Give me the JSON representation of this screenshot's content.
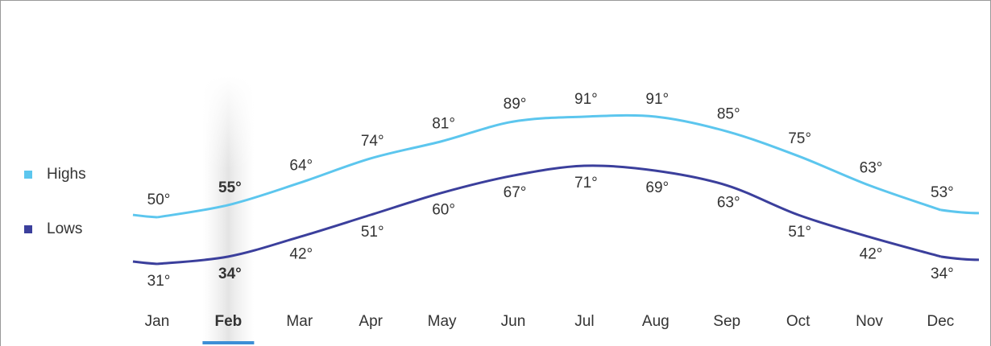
{
  "chart_data": {
    "type": "line",
    "categories": [
      "Jan",
      "Feb",
      "Mar",
      "Apr",
      "May",
      "Jun",
      "Jul",
      "Aug",
      "Sep",
      "Oct",
      "Nov",
      "Dec"
    ],
    "selected_index": 1,
    "series": [
      {
        "name": "Highs",
        "color": "#5cc6ee",
        "values": [
          50,
          55,
          64,
          74,
          81,
          89,
          91,
          91,
          85,
          75,
          63,
          53
        ],
        "value_labels": [
          "50°",
          "55°",
          "64°",
          "74°",
          "81°",
          "89°",
          "91°",
          "91°",
          "85°",
          "75°",
          "63°",
          "53°"
        ]
      },
      {
        "name": "Lows",
        "color": "#3b3f9c",
        "values": [
          31,
          34,
          42,
          51,
          60,
          67,
          71,
          69,
          63,
          51,
          42,
          34
        ],
        "value_labels": [
          "31°",
          "34°",
          "42°",
          "51°",
          "60°",
          "67°",
          "71°",
          "69°",
          "63°",
          "51°",
          "42°",
          "34°"
        ]
      }
    ]
  }
}
